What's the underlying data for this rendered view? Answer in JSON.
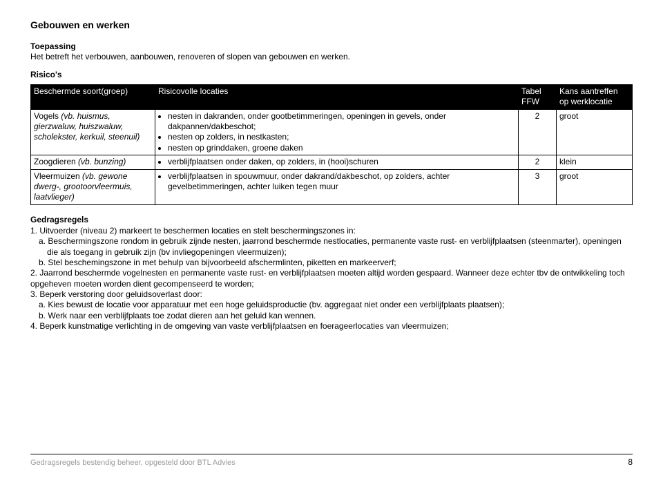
{
  "title": "Gebouwen en werken",
  "toepassing": {
    "label": "Toepassing",
    "text": "Het betreft het verbouwen, aanbouwen, renoveren of slopen van gebouwen en werken."
  },
  "risico_label": "Risico's",
  "table": {
    "columns": {
      "soort": "Beschermde soort(groep)",
      "locaties": "Risicovolle locaties",
      "tabel": "Tabel FFW",
      "kans": "Kans aantreffen op werklocatie"
    },
    "rows": [
      {
        "soort_prefix": "Vogels ",
        "soort_italic": "(vb. huismus, gierzwaluw, huiszwaluw, scholekster, kerkuil, steenuil)",
        "bullets": [
          "nesten in dakranden, onder gootbetimmeringen, openingen in gevels, onder dakpannen/dakbeschot;",
          "nesten op zolders, in nestkasten;",
          "nesten op grinddaken, groene daken"
        ],
        "tabel": "2",
        "kans": "groot"
      },
      {
        "soort_prefix": "Zoogdieren ",
        "soort_italic": "(vb. bunzing)",
        "bullets": [
          "verblijfplaatsen onder daken, op zolders, in (hooi)schuren"
        ],
        "tabel": "2",
        "kans": "klein"
      },
      {
        "soort_prefix": "Vleermuizen ",
        "soort_italic": "(vb. gewone dwerg-, grootoorvleermuis, laatvlieger)",
        "bullets": [
          "verblijfplaatsen in spouwmuur, onder dakrand/dakbeschot, op zolders, achter gevelbetimmeringen, achter luiken tegen muur"
        ],
        "tabel": "3",
        "kans": "groot"
      }
    ]
  },
  "rules": {
    "label": "Gedragsregels",
    "items": [
      "1. Uitvoerder (niveau 2) markeert te beschermen locaties en stelt beschermingszones in:",
      "a. Beschermingszone rondom in gebruik zijnde nesten, jaarrond beschermde nestlocaties, permanente vaste rust- en verblijfplaatsen (steenmarter), openingen die als toegang in gebruik zijn (bv invliegopeningen vleermuizen);",
      "b. Stel beschemingszone in met behulp van bijvoorbeeld afschermlinten, piketten en markeerverf;",
      "2. Jaarrond beschermde vogelnesten en permanente vaste rust- en verblijfplaatsen moeten altijd worden gespaard. Wanneer deze echter tbv de ontwikkeling toch opgeheven moeten worden dient gecompenseerd te worden;",
      "3. Beperk verstoring door geluidsoverlast door:",
      "a. Kies bewust de locatie voor apparatuur met een hoge geluidsproductie (bv. aggregaat niet onder een verblijfplaats plaatsen);",
      "b. Werk naar een verblijfplaats toe zodat dieren aan het geluid kan wennen.",
      "4. Beperk kunstmatige verlichting in de omgeving van vaste verblijfplaatsen en foerageerlocaties van vleermuizen;"
    ],
    "is_sub": [
      false,
      true,
      true,
      false,
      false,
      true,
      true,
      false
    ]
  },
  "footer": {
    "text": "Gedragsregels bestendig beheer, opgesteld door BTL Advies",
    "page": "8"
  },
  "colors": {
    "header_bg": "#000000",
    "header_fg": "#ffffff",
    "footer_fg": "#9a9a9a",
    "border": "#000000"
  }
}
